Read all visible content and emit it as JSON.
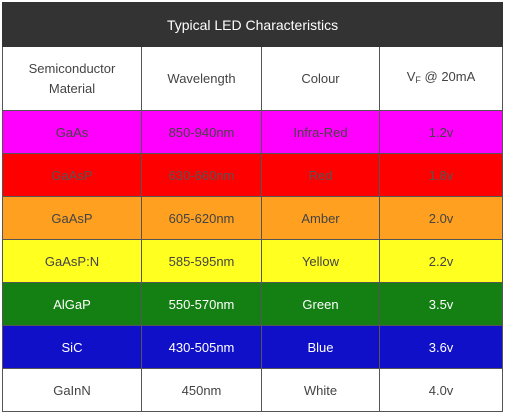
{
  "table": {
    "title": "Typical LED Characteristics",
    "headers": {
      "material_line1": "Semiconductor",
      "material_line2": "Material",
      "wavelength": "Wavelength",
      "colour": "Colour",
      "vf_main": "V",
      "vf_sub": "F",
      "vf_suffix": " @ 20mA"
    },
    "rows": [
      {
        "material": "GaAs",
        "wavelength": "850-940nm",
        "colour": "Infra-Red",
        "vf": "1.2v",
        "bg": "#ff00ff",
        "fg": "#444444"
      },
      {
        "material": "GaAsP",
        "wavelength": "630-660nm",
        "colour": "Red",
        "vf": "1.8v",
        "bg": "#ff0000",
        "fg": "#555555"
      },
      {
        "material": "GaAsP",
        "wavelength": "605-620nm",
        "colour": "Amber",
        "vf": "2.0v",
        "bg": "#ffa020",
        "fg": "#444444"
      },
      {
        "material": "GaAsP:N",
        "wavelength": "585-595nm",
        "colour": "Yellow",
        "vf": "2.2v",
        "bg": "#ffff20",
        "fg": "#444444"
      },
      {
        "material": "AlGaP",
        "wavelength": "550-570nm",
        "colour": "Green",
        "vf": "3.5v",
        "bg": "#148014",
        "fg": "#ffffff"
      },
      {
        "material": "SiC",
        "wavelength": "430-505nm",
        "colour": "Blue",
        "vf": "3.6v",
        "bg": "#1010c8",
        "fg": "#ffffff"
      },
      {
        "material": "GaInN",
        "wavelength": "450nm",
        "colour": "White",
        "vf": "4.0v",
        "bg": "#ffffff",
        "fg": "#444444"
      }
    ]
  }
}
